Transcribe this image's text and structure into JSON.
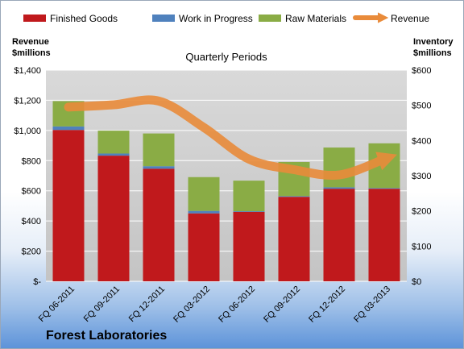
{
  "chart_data": {
    "type": "bar",
    "subtype": "stacked bar with line overlay",
    "company": "Forest Laboratories",
    "title": "Quarterly Periods",
    "left_axis_title": [
      "Revenue",
      "$millions"
    ],
    "right_axis_title": [
      "Inventory",
      "$millions"
    ],
    "categories": [
      "FQ 06-2011",
      "FQ 09-2011",
      "FQ 12-2011",
      "FQ 03-2012",
      "FQ 06-2012",
      "FQ 09-2012",
      "FQ 12-2012",
      "FQ 03-2013"
    ],
    "left_axis": {
      "min": 0,
      "max": 1400,
      "step": 200,
      "tick_labels": [
        "$-",
        "$200",
        "$400",
        "$600",
        "$800",
        "$1,000",
        "$1,200",
        "$1,400"
      ]
    },
    "right_axis": {
      "min": 0,
      "max": 600,
      "step": 100,
      "tick_labels": [
        "$0",
        "$100",
        "$200",
        "$300",
        "$400",
        "$500",
        "$600"
      ]
    },
    "grid": true,
    "legend_position": "top",
    "series": [
      {
        "name": "Finished Goods",
        "axis": "right",
        "kind": "stacked-bar",
        "color": "#c0191c",
        "values": [
          430,
          357,
          320,
          193,
          197,
          240,
          263,
          263
        ]
      },
      {
        "name": "Work in Progress",
        "axis": "right",
        "kind": "stacked-bar",
        "color": "#4f81bd",
        "values": [
          10,
          6,
          7,
          7,
          2,
          2,
          4,
          2
        ]
      },
      {
        "name": "Raw Materials",
        "axis": "right",
        "kind": "stacked-bar",
        "color": "#8aac45",
        "values": [
          72,
          65,
          93,
          96,
          87,
          97,
          113,
          127
        ]
      },
      {
        "name": "Revenue",
        "axis": "left",
        "kind": "line",
        "color": "#e98b3a",
        "values": [
          1155,
          1170,
          1195,
          1020,
          810,
          740,
          705,
          810
        ]
      }
    ]
  }
}
